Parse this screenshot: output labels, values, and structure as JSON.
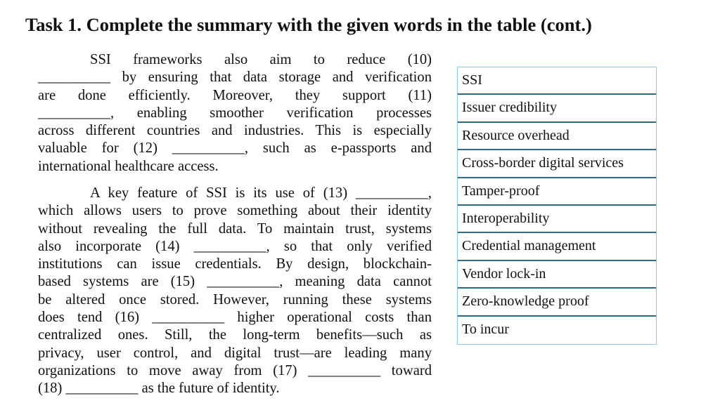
{
  "title": "Task 1. Complete the summary with the given words in the table (cont.)",
  "paragraphs": [
    {
      "lines": [
        "SSI frameworks also aim to reduce (10)",
        "__________ by ensuring that data storage and verification",
        "are done efficiently. Moreover, they support (11)",
        "__________, enabling smoother verification processes",
        "across different countries and industries. This is especially",
        "valuable for (12) __________, such as e-passports and",
        "international healthcare access."
      ]
    },
    {
      "lines": [
        "A key feature of SSI is its use of (13) __________,",
        "which allows users to prove something about their identity",
        "without revealing the full data. To maintain trust, systems",
        "also incorporate (14) __________, so that only verified",
        "institutions can issue credentials. By design, blockchain-",
        "based systems are (15) __________, meaning data cannot",
        "be altered once stored. However, running these systems",
        "does tend (16) __________ higher operational costs than",
        "centralized ones. Still, the long-term benefits—such as",
        "privacy, user control, and digital trust—are leading many",
        "organizations to move away from (17) __________ toward",
        "(18) __________ as the future of identity."
      ]
    }
  ],
  "word_table": [
    "SSI",
    "Issuer credibility",
    "Resource overhead",
    "Cross-border digital services",
    "Tamper-proof",
    "Interoperability",
    "Credential management",
    "Vendor lock-in",
    "Zero-knowledge proof",
    "To incur"
  ],
  "colors": {
    "table_outer_border": "#8cc8ec",
    "table_row_divider": "#2e6a86"
  }
}
